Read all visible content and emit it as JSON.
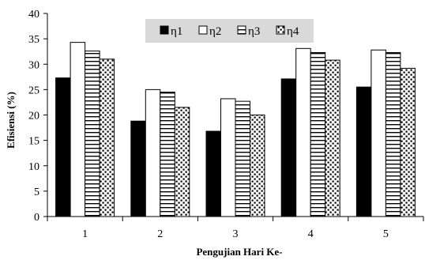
{
  "chart_data": {
    "type": "bar",
    "xlabel": "Pengujian Hari Ke-",
    "ylabel": "Efisiensi (%)",
    "ylim": [
      0,
      40
    ],
    "yticks": [
      0,
      5,
      10,
      15,
      20,
      25,
      30,
      35,
      40
    ],
    "categories": [
      "1",
      "2",
      "3",
      "4",
      "5"
    ],
    "grid": false,
    "legend": "top-center",
    "series": [
      {
        "name": "η1",
        "pattern": "solid",
        "color": "#000000",
        "values": [
          27.3,
          18.8,
          16.8,
          27.1,
          25.5
        ]
      },
      {
        "name": "η2",
        "pattern": "empty",
        "color": "#ffffff",
        "values": [
          34.3,
          25.0,
          23.2,
          33.1,
          32.8
        ]
      },
      {
        "name": "η3",
        "pattern": "horizontal-stripes",
        "color": "#000000",
        "values": [
          32.6,
          24.5,
          22.7,
          32.3,
          32.3
        ]
      },
      {
        "name": "η4",
        "pattern": "dots",
        "color": "#000000",
        "values": [
          31.0,
          21.5,
          20.0,
          30.8,
          29.2
        ]
      }
    ]
  }
}
